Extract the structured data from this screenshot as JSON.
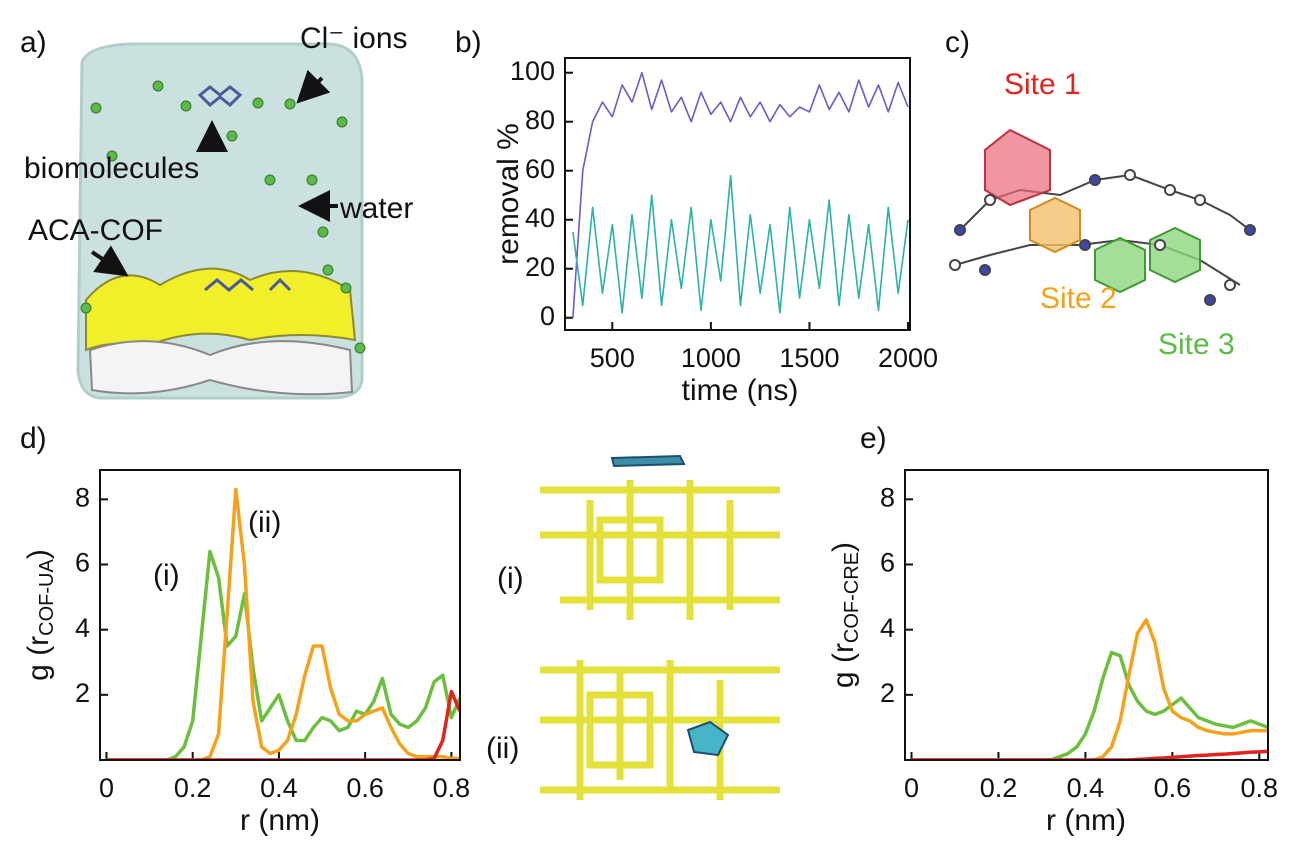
{
  "panel_labels": [
    "a)",
    "b)",
    "c)",
    "d)",
    "e)"
  ],
  "panel_a": {
    "annotations": [
      "Cl⁻ ions",
      "biomolecules",
      "water",
      "ACA-COF"
    ]
  },
  "panel_c": {
    "sites": [
      "Site 1",
      "Site 2",
      "Site 3"
    ]
  },
  "snapshots": {
    "labels": [
      "(i)",
      "(ii)"
    ]
  },
  "chart_data": [
    {
      "type": "line",
      "xlabel": "time (ns)",
      "ylabel": {
        "text": "removal %"
      },
      "xlim": [
        260,
        2010
      ],
      "ylim": [
        -5,
        106
      ],
      "xticks": [
        500,
        1000,
        1500,
        2000
      ],
      "yticks": [
        0,
        20,
        40,
        60,
        80,
        100
      ],
      "x": [
        300,
        350,
        400,
        450,
        500,
        550,
        600,
        650,
        700,
        750,
        800,
        850,
        900,
        950,
        1000,
        1050,
        1100,
        1150,
        1200,
        1250,
        1300,
        1350,
        1400,
        1450,
        1500,
        1550,
        1600,
        1650,
        1700,
        1750,
        1800,
        1850,
        1900,
        1950,
        2000
      ],
      "series": [
        {
          "color": "#6a5acd",
          "values": [
            0,
            60,
            80,
            88,
            82,
            95,
            88,
            100,
            85,
            97,
            84,
            90,
            80,
            92,
            83,
            88,
            80,
            90,
            82,
            88,
            80,
            87,
            82,
            86,
            84,
            95,
            85,
            92,
            84,
            97,
            86,
            95,
            84,
            96,
            86
          ]
        },
        {
          "color": "#2ab3a6",
          "values": [
            35,
            5,
            45,
            10,
            38,
            2,
            42,
            8,
            50,
            5,
            40,
            12,
            45,
            3,
            40,
            15,
            58,
            5,
            42,
            10,
            38,
            2,
            45,
            8,
            40,
            12,
            48,
            5,
            42,
            8,
            38,
            3,
            45,
            10,
            40
          ]
        }
      ]
    },
    {
      "type": "line",
      "xlabel": "r (nm)",
      "ylabel": {
        "text": "g (r",
        "sub": "COF-UA",
        "end": ")"
      },
      "annotations": [
        "(i)",
        "(ii)"
      ],
      "xlim": [
        -0.015,
        0.82
      ],
      "ylim": [
        0,
        8.9
      ],
      "xticks": [
        0,
        0.2,
        0.4,
        0.6,
        0.8
      ],
      "yticks": [
        2,
        4,
        6,
        8
      ],
      "x": [
        0,
        0.02,
        0.04,
        0.06,
        0.08,
        0.1,
        0.12,
        0.14,
        0.16,
        0.18,
        0.2,
        0.22,
        0.24,
        0.26,
        0.28,
        0.3,
        0.32,
        0.34,
        0.36,
        0.38,
        0.4,
        0.42,
        0.44,
        0.46,
        0.48,
        0.5,
        0.52,
        0.54,
        0.56,
        0.58,
        0.6,
        0.62,
        0.64,
        0.66,
        0.68,
        0.7,
        0.72,
        0.74,
        0.76,
        0.78,
        0.8,
        0.82
      ],
      "series": [
        {
          "color": "#6cbf3c",
          "values": [
            0,
            0,
            0,
            0,
            0,
            0,
            0,
            0,
            0.1,
            0.4,
            1.2,
            3.8,
            6.4,
            5.6,
            3.5,
            3.8,
            5.1,
            2.8,
            1.2,
            1.6,
            2.0,
            1.2,
            0.6,
            0.6,
            1.0,
            1.3,
            1.2,
            0.9,
            1.0,
            1.5,
            1.4,
            1.8,
            2.5,
            1.4,
            1.1,
            1.0,
            1.2,
            1.6,
            2.4,
            2.6,
            1.3,
            1.9
          ]
        },
        {
          "color": "#f5a21b",
          "values": [
            0,
            0,
            0,
            0,
            0,
            0,
            0,
            0,
            0,
            0,
            0,
            0,
            0.1,
            0.8,
            4.5,
            8.3,
            6.0,
            1.8,
            0.4,
            0.2,
            0.3,
            0.6,
            1.4,
            2.6,
            3.5,
            3.5,
            2.2,
            1.4,
            1.2,
            1.2,
            1.4,
            1.5,
            1.6,
            1.0,
            0.5,
            0.2,
            0.1,
            0.1,
            0.1,
            0.1,
            0.05,
            0.05
          ]
        },
        {
          "color": "#e3231b",
          "values": [
            0,
            0,
            0,
            0,
            0,
            0,
            0,
            0,
            0,
            0,
            0,
            0,
            0,
            0,
            0,
            0,
            0,
            0,
            0,
            0,
            0,
            0,
            0,
            0,
            0,
            0,
            0,
            0,
            0,
            0,
            0,
            0,
            0,
            0,
            0,
            0,
            0,
            0,
            0.05,
            0.6,
            2.1,
            1.5
          ]
        }
      ]
    },
    {
      "type": "line",
      "xlabel": "r (nm)",
      "ylabel": {
        "text": "g (r",
        "sub": "COF-CRE",
        "end": ")"
      },
      "xlim": [
        -0.015,
        0.82
      ],
      "ylim": [
        0,
        8.9
      ],
      "xticks": [
        0,
        0.2,
        0.4,
        0.6,
        0.8
      ],
      "yticks": [
        2,
        4,
        6,
        8
      ],
      "x": [
        0,
        0.02,
        0.04,
        0.06,
        0.08,
        0.1,
        0.12,
        0.14,
        0.16,
        0.18,
        0.2,
        0.22,
        0.24,
        0.26,
        0.28,
        0.3,
        0.32,
        0.34,
        0.36,
        0.38,
        0.4,
        0.42,
        0.44,
        0.46,
        0.48,
        0.5,
        0.52,
        0.54,
        0.56,
        0.58,
        0.6,
        0.62,
        0.64,
        0.66,
        0.68,
        0.7,
        0.72,
        0.74,
        0.76,
        0.78,
        0.8,
        0.82
      ],
      "series": [
        {
          "color": "#6cbf3c",
          "values": [
            0,
            0,
            0,
            0,
            0,
            0,
            0,
            0,
            0,
            0,
            0,
            0,
            0,
            0,
            0,
            0,
            0,
            0.1,
            0.2,
            0.4,
            0.8,
            1.5,
            2.5,
            3.3,
            3.2,
            2.3,
            1.8,
            1.5,
            1.4,
            1.5,
            1.7,
            1.9,
            1.6,
            1.3,
            1.2,
            1.1,
            1.05,
            1.0,
            1.1,
            1.2,
            1.1,
            1.0
          ]
        },
        {
          "color": "#f5a21b",
          "values": [
            0,
            0,
            0,
            0,
            0,
            0,
            0,
            0,
            0,
            0,
            0,
            0,
            0,
            0,
            0,
            0,
            0,
            0,
            0,
            0,
            0,
            0,
            0.1,
            0.4,
            1.2,
            2.6,
            3.9,
            4.3,
            3.6,
            2.2,
            1.5,
            1.3,
            1.2,
            1.0,
            0.9,
            0.85,
            0.8,
            0.8,
            0.85,
            0.9,
            0.9,
            0.9
          ]
        },
        {
          "color": "#e3231b",
          "values": [
            0,
            0,
            0,
            0,
            0,
            0,
            0,
            0,
            0,
            0,
            0,
            0,
            0,
            0,
            0,
            0,
            0,
            0,
            0,
            0,
            0,
            0,
            0,
            0,
            0,
            0,
            0.02,
            0.03,
            0.05,
            0.06,
            0.08,
            0.1,
            0.12,
            0.14,
            0.15,
            0.17,
            0.18,
            0.2,
            0.22,
            0.24,
            0.25,
            0.27
          ]
        }
      ]
    }
  ]
}
